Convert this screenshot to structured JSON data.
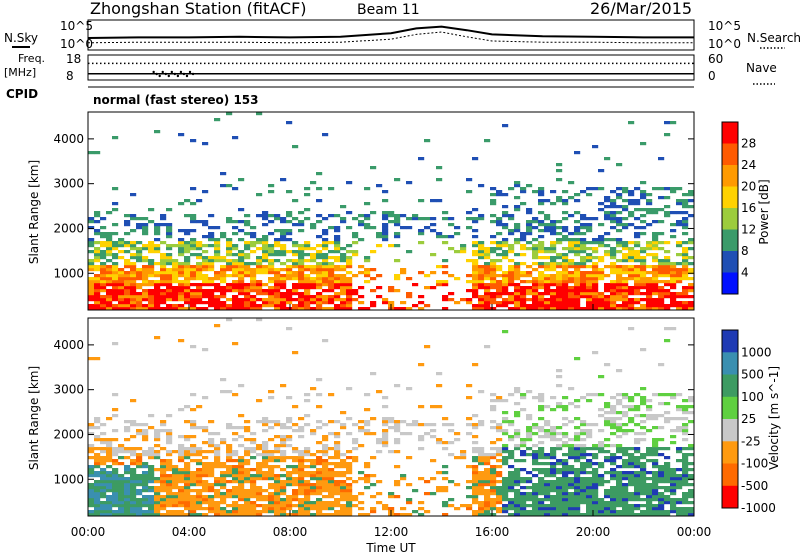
{
  "header": {
    "station": "Zhongshan Station (fitACF)",
    "beam": "Beam 11",
    "date": "26/Mar/2015"
  },
  "top_panels": {
    "nsky_label": "N.Sky",
    "nsearch_label": "N.Search",
    "left_ticks": [
      "10^5",
      "10^0"
    ],
    "right_ticks": [
      "10^5",
      "10^0"
    ],
    "freq_label_1": "Freq.",
    "freq_label_2": "[MHz]",
    "freq_ticks": [
      "18",
      "8"
    ],
    "nave_ticks": [
      "60",
      "0"
    ],
    "nave_label": "Nave",
    "cpid_label": "CPID",
    "cpid_text": "normal (fast stereo) 153"
  },
  "power_colorbar": {
    "title": "Power [dB]",
    "labels": [
      "28",
      "24",
      "20",
      "16",
      "12",
      "8",
      "4"
    ],
    "colors": [
      "#ff0000",
      "#ff5a00",
      "#ff9a00",
      "#ffd200",
      "#9ccc3c",
      "#3a9b6a",
      "#1f4fb4",
      "#0010ff"
    ]
  },
  "velocity_colorbar": {
    "title": "Velocity [m s^-1]",
    "labels": [
      "1000",
      "500",
      "100",
      "25",
      "-25",
      "-100",
      "-500",
      "-1000"
    ],
    "colors": [
      "#1f3ab4",
      "#3a8fb0",
      "#3d9b62",
      "#5fd040",
      "#c8c8c8",
      "#ff9a10",
      "#ff6a00",
      "#ff0000"
    ]
  },
  "chart_data": [
    {
      "type": "line",
      "panel": "N.Sky / N.Search",
      "x": [
        0,
        2,
        4,
        6,
        8,
        10,
        12,
        13,
        14,
        15,
        16,
        18,
        20,
        22,
        24
      ],
      "series": [
        {
          "name": "N.Sky",
          "values": [
            2.0,
            2.1,
            2.1,
            2.2,
            2.1,
            2.2,
            2.8,
            3.6,
            3.9,
            3.3,
            2.6,
            2.3,
            2.2,
            2.1,
            2.1
          ]
        },
        {
          "name": "N.Search",
          "values": [
            1.2,
            1.3,
            1.3,
            1.3,
            1.2,
            1.3,
            1.8,
            2.6,
            3.0,
            2.2,
            1.5,
            1.3,
            1.3,
            1.2,
            1.2
          ]
        }
      ],
      "ylim": [
        0,
        5
      ],
      "xlim": [
        0,
        24
      ]
    },
    {
      "type": "scatter",
      "panel": "Freq / Nave",
      "xlim": [
        0,
        24
      ],
      "freq_ylim": [
        8,
        18
      ],
      "nave_ylim": [
        0,
        60
      ],
      "series": [
        {
          "name": "Freq.",
          "values": [
            10.5,
            10.5,
            10.5,
            10.5,
            10.5
          ]
        },
        {
          "name": "Nave",
          "values": [
            40,
            40,
            40,
            40,
            40
          ]
        }
      ]
    },
    {
      "type": "heatmap",
      "panel": "Power",
      "title": "",
      "ylabel": "Slant Range [km]",
      "yticks": [
        "1000",
        "2000",
        "3000",
        "4000"
      ],
      "ylim": [
        180,
        4600
      ],
      "xlim": [
        0,
        24
      ],
      "scale_labels": [
        "28",
        "24",
        "20",
        "16",
        "12",
        "8",
        "4"
      ]
    },
    {
      "type": "heatmap",
      "panel": "Velocity",
      "ylabel": "Slant Range [km]",
      "xlabel": "Time UT",
      "xticks": [
        "00:00",
        "04:00",
        "08:00",
        "12:00",
        "16:00",
        "20:00",
        "00:00"
      ],
      "yticks": [
        "1000",
        "2000",
        "3000",
        "4000"
      ],
      "ylim": [
        180,
        4600
      ],
      "xlim": [
        0,
        24
      ],
      "scale_labels": [
        "1000",
        "500",
        "100",
        "25",
        "-25",
        "-100",
        "-500",
        "-1000"
      ]
    }
  ]
}
